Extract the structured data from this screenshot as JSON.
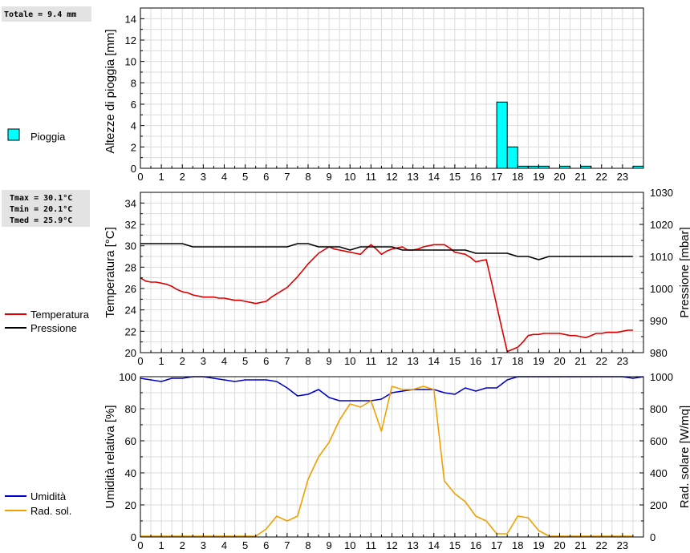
{
  "rain_box": {
    "text": "Totale = 9.4 mm"
  },
  "temp_box": {
    "lines": [
      "Tmax = 30.1°C",
      "Tmin = 20.1°C",
      "Tmed = 25.9°C"
    ]
  },
  "chart_data": [
    {
      "type": "bar",
      "ylabel": "Altezze di pioggia [mm]",
      "ylim": [
        0,
        15
      ],
      "y_ticks": [
        0,
        2,
        4,
        6,
        8,
        10,
        12,
        14
      ],
      "x_ticks": [
        0,
        1,
        2,
        3,
        4,
        5,
        6,
        7,
        8,
        9,
        10,
        11,
        12,
        13,
        14,
        15,
        16,
        17,
        18,
        19,
        20,
        21,
        22,
        23
      ],
      "xlim": [
        0,
        24
      ],
      "grid": true,
      "legend_position": "left",
      "series": [
        {
          "name": "Pioggia",
          "color": "#00ffff",
          "points": [
            {
              "x": 17.0,
              "y": 6.2
            },
            {
              "x": 17.5,
              "y": 2.0
            },
            {
              "x": 18.0,
              "y": 0.2
            },
            {
              "x": 18.5,
              "y": 0.2
            },
            {
              "x": 19.0,
              "y": 0.2
            },
            {
              "x": 20.0,
              "y": 0.2
            },
            {
              "x": 21.0,
              "y": 0.2
            },
            {
              "x": 23.5,
              "y": 0.2
            }
          ]
        }
      ]
    },
    {
      "type": "line",
      "ylabel": "Temperatura [°C]",
      "y2label": "Pressione [mbar]",
      "ylim": [
        20,
        35
      ],
      "y2lim": [
        980,
        1030
      ],
      "y_ticks": [
        20,
        22,
        24,
        26,
        28,
        30,
        32,
        34
      ],
      "y2_ticks": [
        980,
        990,
        1000,
        1010,
        1020,
        1030
      ],
      "x_ticks": [
        0,
        1,
        2,
        3,
        4,
        5,
        6,
        7,
        8,
        9,
        10,
        11,
        12,
        13,
        14,
        15,
        16,
        17,
        18,
        19,
        20,
        21,
        22,
        23
      ],
      "xlim": [
        0,
        24
      ],
      "grid": true,
      "legend_position": "left",
      "series": [
        {
          "name": "Temperatura",
          "color": "#dd0000",
          "axis": "left",
          "x": [
            0,
            0.25,
            0.5,
            0.75,
            1,
            1.25,
            1.5,
            1.75,
            2,
            2.25,
            2.5,
            2.75,
            3,
            3.25,
            3.5,
            3.75,
            4,
            4.25,
            4.5,
            4.75,
            5,
            5.25,
            5.5,
            5.75,
            6,
            6.25,
            6.5,
            6.75,
            7,
            7.25,
            7.5,
            7.75,
            8,
            8.25,
            8.5,
            8.75,
            9,
            9.25,
            9.5,
            9.75,
            10,
            10.25,
            10.5,
            10.75,
            11,
            11.25,
            11.5,
            11.75,
            12,
            12.25,
            12.5,
            12.75,
            13,
            13.25,
            13.5,
            13.75,
            14,
            14.25,
            14.5,
            14.75,
            15,
            15.25,
            15.5,
            15.75,
            16,
            16.25,
            16.5,
            16.75,
            17,
            17.25,
            17.5,
            17.75,
            18,
            18.25,
            18.5,
            18.75,
            19,
            19.25,
            19.5,
            19.75,
            20,
            20.25,
            20.5,
            20.75,
            21,
            21.25,
            21.5,
            21.75,
            22,
            22.25,
            22.5,
            22.75,
            23,
            23.25,
            23.5
          ],
          "y": [
            27.0,
            26.7,
            26.6,
            26.6,
            26.5,
            26.4,
            26.2,
            25.9,
            25.7,
            25.6,
            25.4,
            25.3,
            25.2,
            25.2,
            25.2,
            25.1,
            25.1,
            25.0,
            24.9,
            24.9,
            24.8,
            24.7,
            24.6,
            24.7,
            24.8,
            25.2,
            25.5,
            25.8,
            26.1,
            26.6,
            27.1,
            27.7,
            28.3,
            28.8,
            29.3,
            29.6,
            29.9,
            29.7,
            29.6,
            29.5,
            29.4,
            29.3,
            29.2,
            29.7,
            30.1,
            29.7,
            29.2,
            29.5,
            29.7,
            29.8,
            29.9,
            29.6,
            29.6,
            29.7,
            29.9,
            30.0,
            30.1,
            30.1,
            30.1,
            29.8,
            29.4,
            29.3,
            29.2,
            28.9,
            28.5,
            28.6,
            28.7,
            26.6,
            24.4,
            22.2,
            20.1,
            20.3,
            20.5,
            21.0,
            21.6,
            21.7,
            21.7,
            21.8,
            21.8,
            21.8,
            21.8,
            21.7,
            21.6,
            21.6,
            21.5,
            21.4,
            21.6,
            21.8,
            21.8,
            21.9,
            21.9,
            21.9,
            22.0,
            22.1,
            22.1
          ]
        },
        {
          "name": "Pressione",
          "color": "#000000",
          "axis": "right",
          "x": [
            0,
            0.5,
            1,
            1.5,
            2,
            2.5,
            3,
            3.5,
            4,
            4.5,
            5,
            5.5,
            6,
            6.5,
            7,
            7.5,
            8,
            8.5,
            9,
            9.5,
            10,
            10.5,
            11,
            11.5,
            12,
            12.5,
            13,
            13.5,
            14,
            14.5,
            15,
            15.5,
            16,
            16.5,
            17,
            17.5,
            18,
            18.5,
            19,
            19.5,
            20,
            20.5,
            21,
            21.5,
            22,
            22.5,
            23,
            23.5
          ],
          "y": [
            1014,
            1014,
            1014,
            1014,
            1014,
            1013,
            1013,
            1013,
            1013,
            1013,
            1013,
            1013,
            1013,
            1013,
            1013,
            1014,
            1014,
            1013,
            1013,
            1013,
            1012,
            1013,
            1013,
            1013,
            1013,
            1012,
            1012,
            1012,
            1012,
            1012,
            1012,
            1012,
            1011,
            1011,
            1011,
            1011,
            1010,
            1010,
            1009,
            1010,
            1010,
            1010,
            1010,
            1010,
            1010,
            1010,
            1010,
            1010
          ]
        }
      ]
    },
    {
      "type": "line",
      "ylabel": "Umidità relativa [%]",
      "y2label": "Rad. solare [W/mq]",
      "ylim": [
        0,
        100
      ],
      "y2lim": [
        0,
        1000
      ],
      "y_ticks": [
        0,
        20,
        40,
        60,
        80,
        100
      ],
      "y2_ticks": [
        0,
        200,
        400,
        600,
        800,
        1000
      ],
      "x_ticks": [
        0,
        1,
        2,
        3,
        4,
        5,
        6,
        7,
        8,
        9,
        10,
        11,
        12,
        13,
        14,
        15,
        16,
        17,
        18,
        19,
        20,
        21,
        22,
        23
      ],
      "xlim": [
        0,
        24
      ],
      "grid": true,
      "legend_position": "left",
      "series": [
        {
          "name": "Umidità",
          "color": "#0000cc",
          "axis": "left",
          "x": [
            0,
            0.5,
            1,
            1.5,
            2,
            2.5,
            3,
            3.5,
            4,
            4.5,
            5,
            5.5,
            6,
            6.5,
            7,
            7.5,
            8,
            8.5,
            9,
            9.5,
            10,
            10.5,
            11,
            11.5,
            12,
            12.5,
            13,
            13.5,
            14,
            14.5,
            15,
            15.5,
            16,
            16.5,
            17,
            17.5,
            18,
            18.5,
            19,
            19.5,
            20,
            20.5,
            21,
            21.5,
            22,
            22.5,
            23,
            23.5,
            24
          ],
          "y": [
            99,
            98,
            97,
            99,
            99,
            100,
            100,
            99,
            98,
            97,
            98,
            98,
            98,
            97,
            93,
            88,
            89,
            92,
            87,
            85,
            85,
            85,
            85,
            86,
            90,
            91,
            92,
            92,
            92,
            90,
            89,
            93,
            91,
            93,
            93,
            98,
            100,
            100,
            100,
            100,
            100,
            100,
            100,
            100,
            100,
            100,
            100,
            99,
            100
          ]
        },
        {
          "name": "Rad. sol.",
          "color": "#f0a000",
          "axis": "right",
          "x": [
            0,
            0.5,
            1,
            1.5,
            2,
            2.5,
            3,
            3.5,
            4,
            4.5,
            5,
            5.5,
            6,
            6.5,
            7,
            7.5,
            8,
            8.5,
            9,
            9.5,
            10,
            10.5,
            11,
            11.5,
            12,
            12.5,
            13,
            13.5,
            14,
            14.5,
            15,
            15.5,
            16,
            16.5,
            17,
            17.5,
            18,
            18.5,
            19,
            19.5,
            20,
            20.5,
            21,
            21.5,
            22,
            22.5,
            23,
            23.5
          ],
          "y": [
            5,
            5,
            5,
            5,
            5,
            5,
            5,
            5,
            5,
            5,
            5,
            5,
            50,
            130,
            100,
            130,
            360,
            500,
            590,
            730,
            830,
            810,
            850,
            660,
            940,
            920,
            920,
            940,
            920,
            350,
            270,
            220,
            130,
            100,
            20,
            20,
            130,
            120,
            40,
            5,
            5,
            5,
            5,
            5,
            5,
            5,
            5,
            5
          ]
        }
      ]
    }
  ]
}
